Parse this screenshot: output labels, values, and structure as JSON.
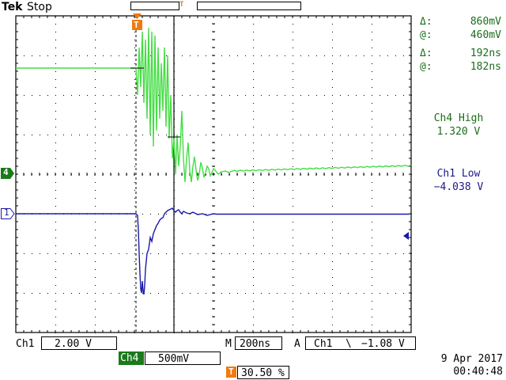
{
  "header": {
    "brand": "Tek",
    "status": "Stop"
  },
  "cursor_readout": {
    "amp_delta_symbol": "Δ:",
    "amp_delta": "860mV",
    "amp_at_symbol": "@:",
    "amp_at": "460mV",
    "time_delta_symbol": "Δ:",
    "time_delta": "192ns",
    "time_at_symbol": "@:",
    "time_at": "182ns"
  },
  "measurements": {
    "ch4_label": "Ch4 High",
    "ch4_value": "1.320 V",
    "ch1_label": "Ch1 Low",
    "ch1_value": "−4.038 V"
  },
  "markers": {
    "ch4": "4",
    "ch1": "1",
    "trigger": "T"
  },
  "bottom": {
    "ch1_label": "Ch1",
    "ch1_scale": "2.00 V",
    "ch4_label": "Ch4",
    "ch4_scale": "500mV",
    "m_label": "M",
    "timebase": "200ns",
    "trigger_mode": "A",
    "trigger_source": "Ch1",
    "trigger_slope_symbol": "\\",
    "trigger_level": "−1.08 V",
    "trigger_pos_icon": "T",
    "trigger_position": "30.50 %",
    "date": "9 Apr  2017",
    "time": "00:40:48"
  },
  "colors": {
    "ch4_trace": "#44dd44",
    "ch1_trace": "#1a1aa8",
    "grid": "#000000",
    "trigger_marker": "#f07a10",
    "readout_text": "#1a6e1a",
    "ch1_status_text": "#1a1a8a",
    "ch4_label_bg": "#1a7a1a"
  }
}
